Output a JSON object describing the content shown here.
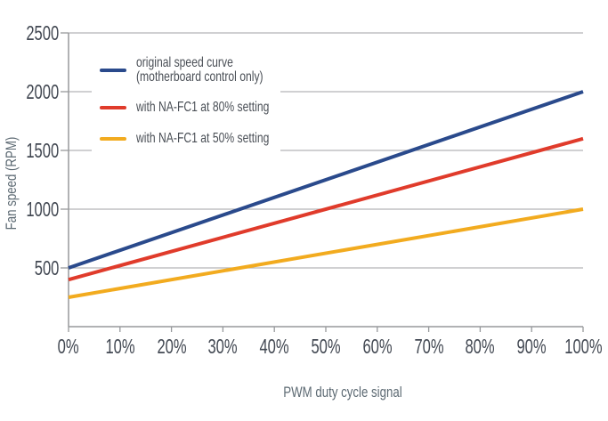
{
  "chart_data": {
    "type": "line",
    "xlabel": "PWM duty cycle signal",
    "ylabel": "Fan speed (RPM)",
    "xlim": [
      0,
      100
    ],
    "ylim": [
      0,
      2500
    ],
    "x": [
      0,
      10,
      20,
      30,
      40,
      50,
      60,
      70,
      80,
      90,
      100
    ],
    "x_tick_labels": [
      "0%",
      "10%",
      "20%",
      "30%",
      "40%",
      "50%",
      "60%",
      "70%",
      "80%",
      "90%",
      "100%"
    ],
    "y_ticks": [
      500,
      1000,
      1500,
      2000,
      2500
    ],
    "y_tick_labels": [
      "500",
      "1000",
      "1500",
      "2000",
      "2500"
    ],
    "grid": "horizontal",
    "legend_position": "top-left-inside",
    "series": [
      {
        "name": "original speed curve (motherboard control only)",
        "label_lines": [
          "original speed curve",
          "(motherboard control only)"
        ],
        "color": "#2a4a8c",
        "x": [
          0,
          100
        ],
        "values": [
          500,
          2000
        ]
      },
      {
        "name": "with NA-FC1 at 80% setting",
        "label_lines": [
          "with NA-FC1 at 80% setting"
        ],
        "color": "#e03b2b",
        "x": [
          0,
          100
        ],
        "values": [
          400,
          1600
        ]
      },
      {
        "name": "with NA-FC1 at 50% setting",
        "label_lines": [
          "with NA-FC1 at 50% setting"
        ],
        "color": "#f2ab1f",
        "x": [
          0,
          100
        ],
        "values": [
          250,
          1000
        ]
      }
    ],
    "colors": {
      "gridline": "#b4b4b6",
      "axis": "#97999c",
      "tick_label": "#424852",
      "axis_label": "#5d6a73",
      "legend_text": "#4a4f56",
      "background": "#ffffff"
    }
  }
}
